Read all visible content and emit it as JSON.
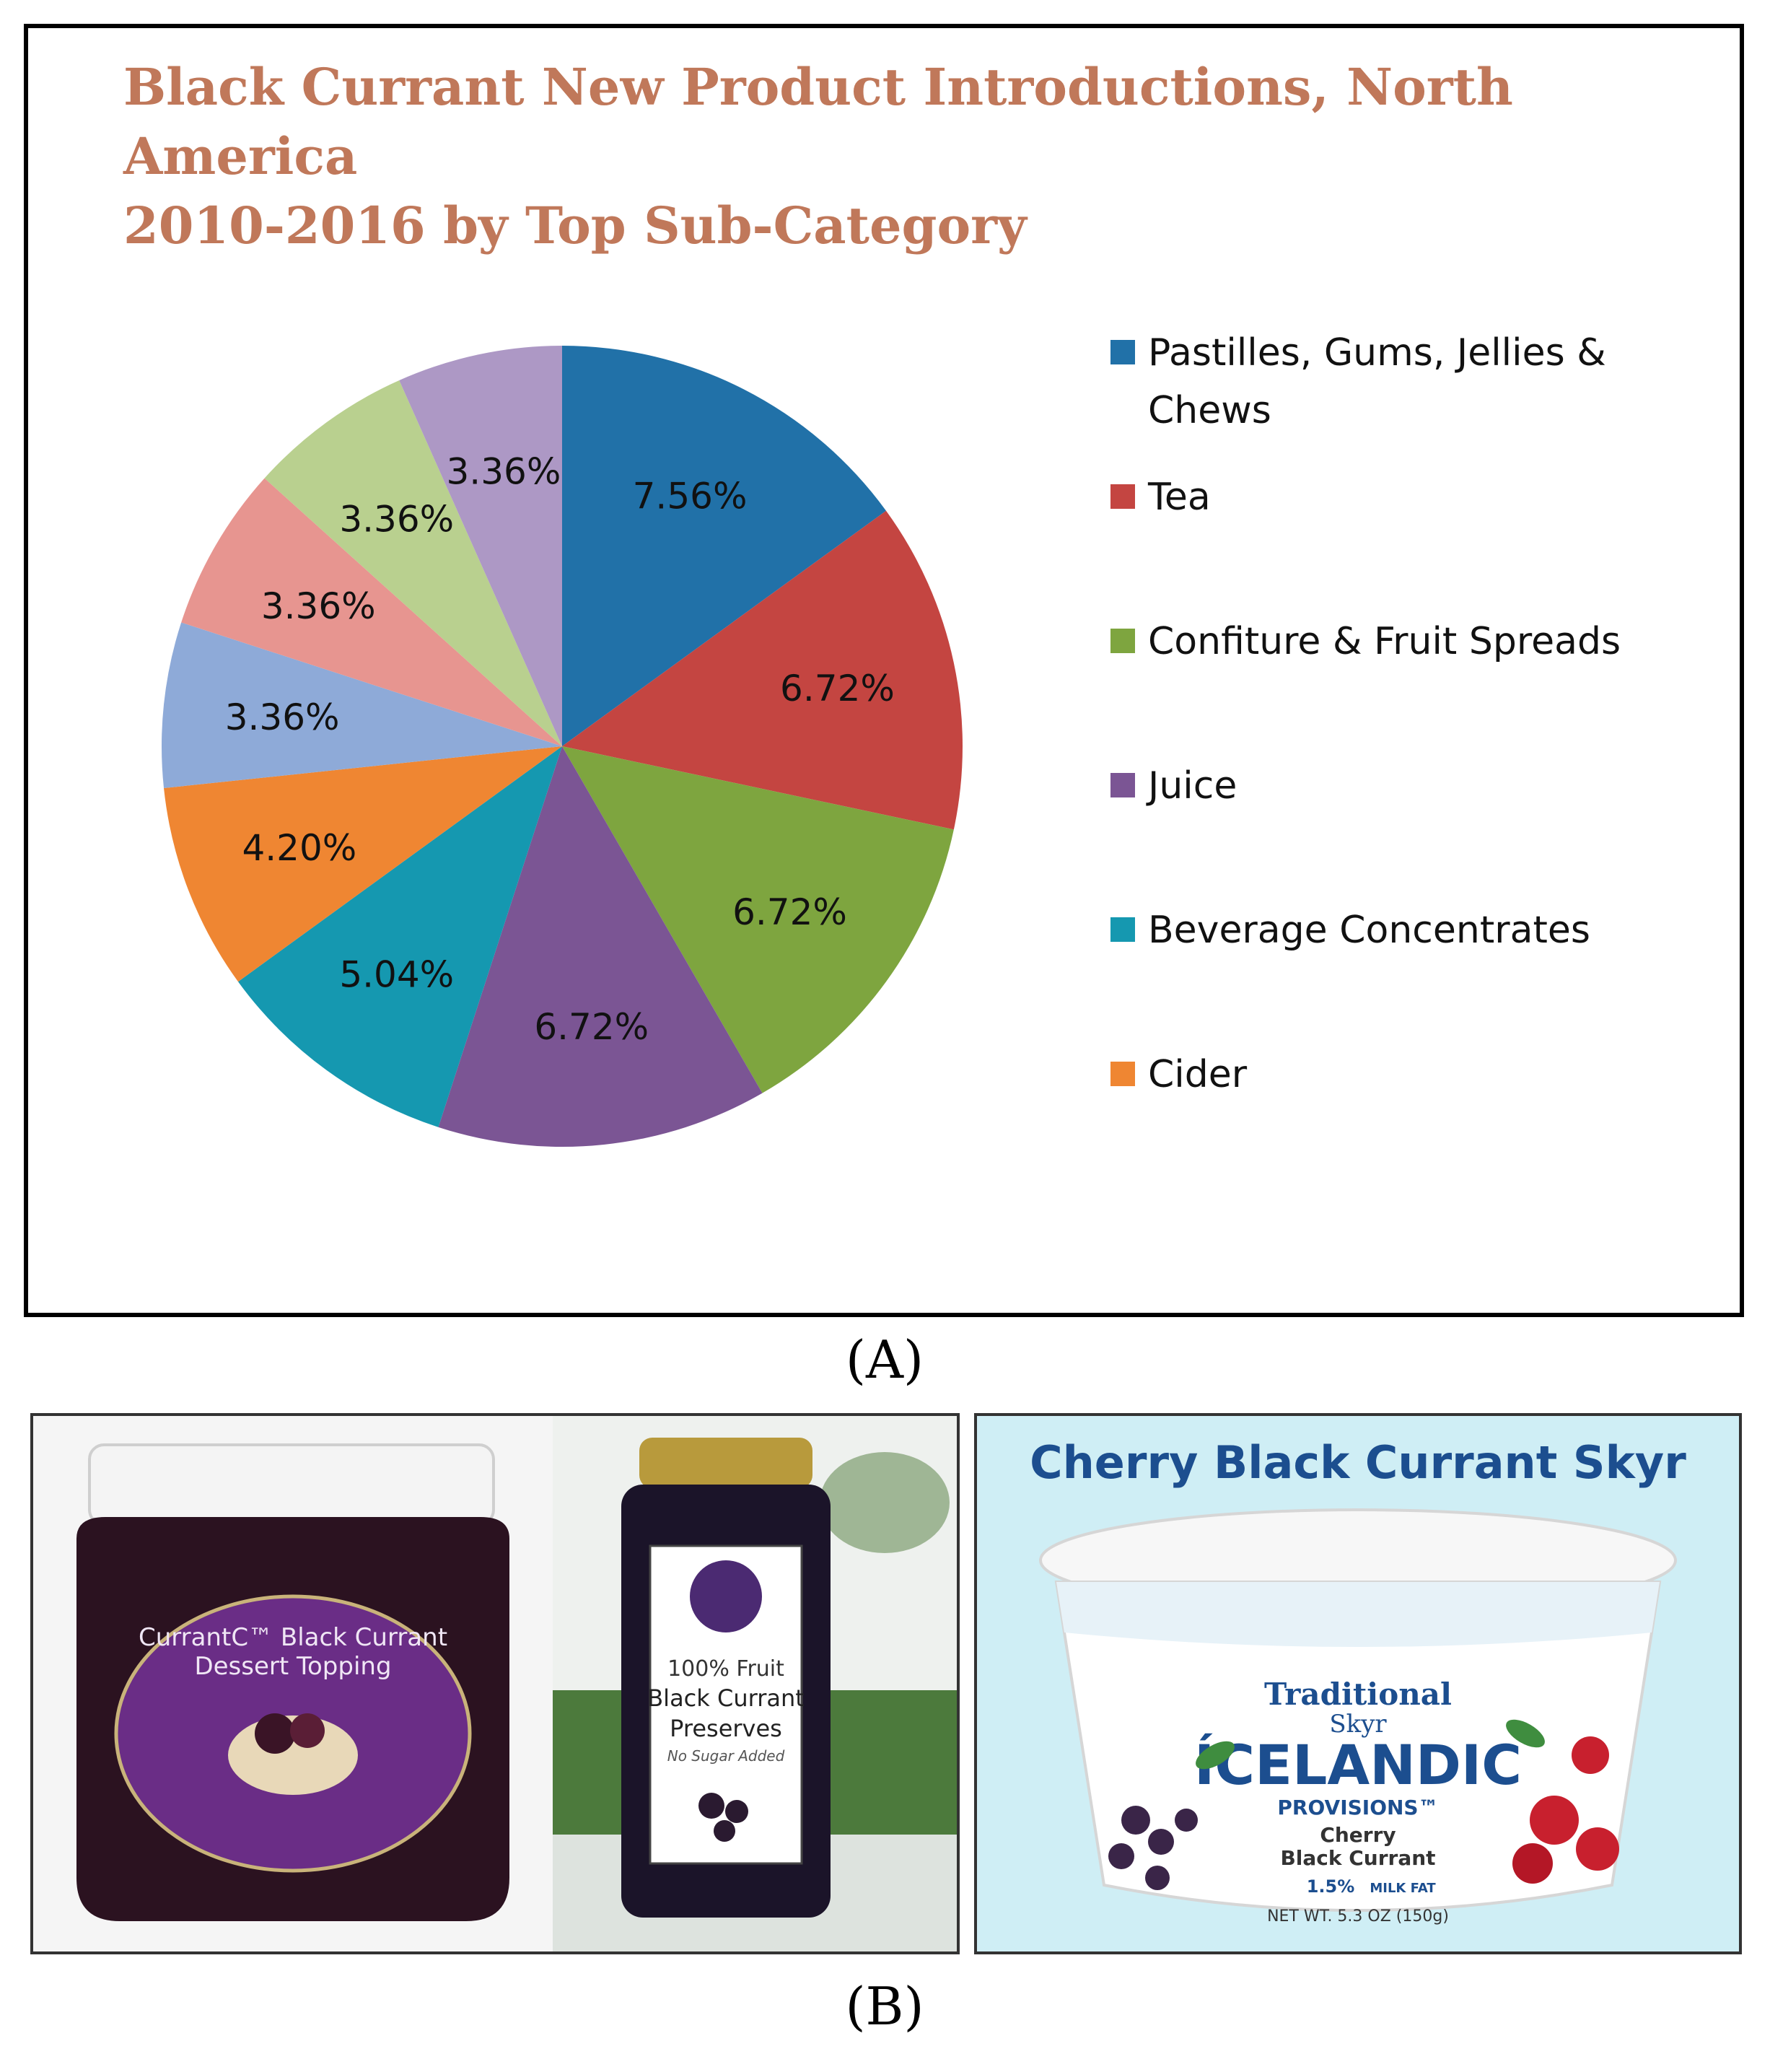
{
  "chart_data": {
    "type": "pie",
    "title_lines": [
      "Black Currant New Product Introductions, North America",
      "2010-2016 by Top Sub-Category"
    ],
    "slices": [
      {
        "label": "7.56%",
        "value": 7.56,
        "color": "#2171a8"
      },
      {
        "label": "6.72%",
        "value": 6.72,
        "color": "#c44541"
      },
      {
        "label": "6.72%",
        "value": 6.72,
        "color": "#7ea53f"
      },
      {
        "label": "6.72%",
        "value": 6.72,
        "color": "#7b5594"
      },
      {
        "label": "5.04%",
        "value": 5.04,
        "color": "#1598b0"
      },
      {
        "label": "4.20%",
        "value": 4.2,
        "color": "#ef8632"
      },
      {
        "label": "3.36%",
        "value": 3.36,
        "color": "#8eaad8"
      },
      {
        "label": "3.36%",
        "value": 3.36,
        "color": "#e79590"
      },
      {
        "label": "3.36%",
        "value": 3.36,
        "color": "#b9d08f"
      },
      {
        "label": "3.36%",
        "value": 3.36,
        "color": "#ad98c5"
      }
    ],
    "legend": [
      {
        "lines": [
          "Pastilles, Gums, Jellies &",
          "Chews"
        ],
        "color": "#2171a8"
      },
      {
        "lines": [
          "Tea"
        ],
        "color": "#c44541"
      },
      {
        "lines": [
          "Confiture & Fruit Spreads"
        ],
        "color": "#7ea53f"
      },
      {
        "lines": [
          "Juice"
        ],
        "color": "#7b5594"
      },
      {
        "lines": [
          "Beverage Concentrates"
        ],
        "color": "#1598b0"
      },
      {
        "lines": [
          "Cider"
        ],
        "color": "#ef8632"
      }
    ],
    "legend_placement": "right"
  },
  "panel_labels": {
    "a": "(A)",
    "b": "(B)"
  },
  "photos": {
    "skyr_heading": "Cherry Black Currant Skyr",
    "jar1_label": [
      "CurrantC™ Black Currant",
      "Dessert Topping"
    ],
    "jar2_label": [
      "100% Fruit",
      "Black Currant",
      "Preserves",
      "No Sugar Added"
    ],
    "skyr_label": [
      "Traditional",
      "Skyr",
      "ÍCELANDIC",
      "PROVISIONS™",
      "Cherry",
      "Black Currant",
      "1.5%",
      "MILK FAT",
      "NET WT. 5.3 OZ (150g)"
    ]
  }
}
